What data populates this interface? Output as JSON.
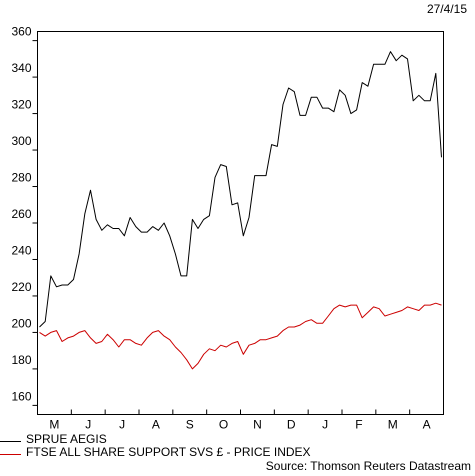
{
  "chart_data": {
    "type": "line",
    "date_label": "27/4/15",
    "x_tick_labels": [
      "M",
      "J",
      "J",
      "A",
      "S",
      "O",
      "N",
      "D",
      "J",
      "F",
      "M",
      "A"
    ],
    "ylim": [
      155,
      365
    ],
    "y_ticks": [
      160,
      180,
      200,
      220,
      240,
      260,
      280,
      300,
      320,
      340,
      360
    ],
    "grid": false,
    "legend_position": "bottom-left",
    "series": [
      {
        "name": "SPRUE AEGIS",
        "color": "#000000",
        "values": [
          203,
          206,
          231,
          225,
          226,
          226,
          229,
          243,
          265,
          278,
          262,
          256,
          259,
          257,
          257,
          253,
          263,
          258,
          255,
          255,
          258,
          256,
          260,
          253,
          243,
          231,
          231,
          262,
          257,
          262,
          264,
          285,
          292,
          291,
          270,
          271,
          253,
          263,
          286,
          286,
          286,
          303,
          302,
          325,
          334,
          332,
          319,
          319,
          329,
          329,
          323,
          323,
          321,
          333,
          330,
          320,
          322,
          337,
          335,
          347,
          347,
          347,
          354,
          349,
          352,
          350,
          327,
          330,
          327,
          327,
          342,
          296
        ]
      },
      {
        "name": "FTSE ALL SHARE SUPPORT SVS £ - PRICE INDEX",
        "color": "#cc0000",
        "values": [
          200,
          198,
          200,
          201,
          195,
          197,
          198,
          200,
          201,
          197,
          194,
          195,
          199,
          196,
          192,
          196,
          196,
          194,
          193,
          197,
          200,
          201,
          198,
          196,
          192,
          189,
          185,
          180,
          183,
          188,
          191,
          190,
          193,
          192,
          194,
          195,
          188,
          193,
          194,
          196,
          196,
          197,
          198,
          201,
          203,
          203,
          204,
          206,
          207,
          205,
          205,
          209,
          213,
          215,
          214,
          215,
          215,
          208,
          211,
          214,
          213,
          209,
          210,
          211,
          212,
          214,
          213,
          212,
          215,
          215,
          216,
          215
        ]
      }
    ],
    "source_note": "Source: Thomson Reuters Datastream"
  }
}
